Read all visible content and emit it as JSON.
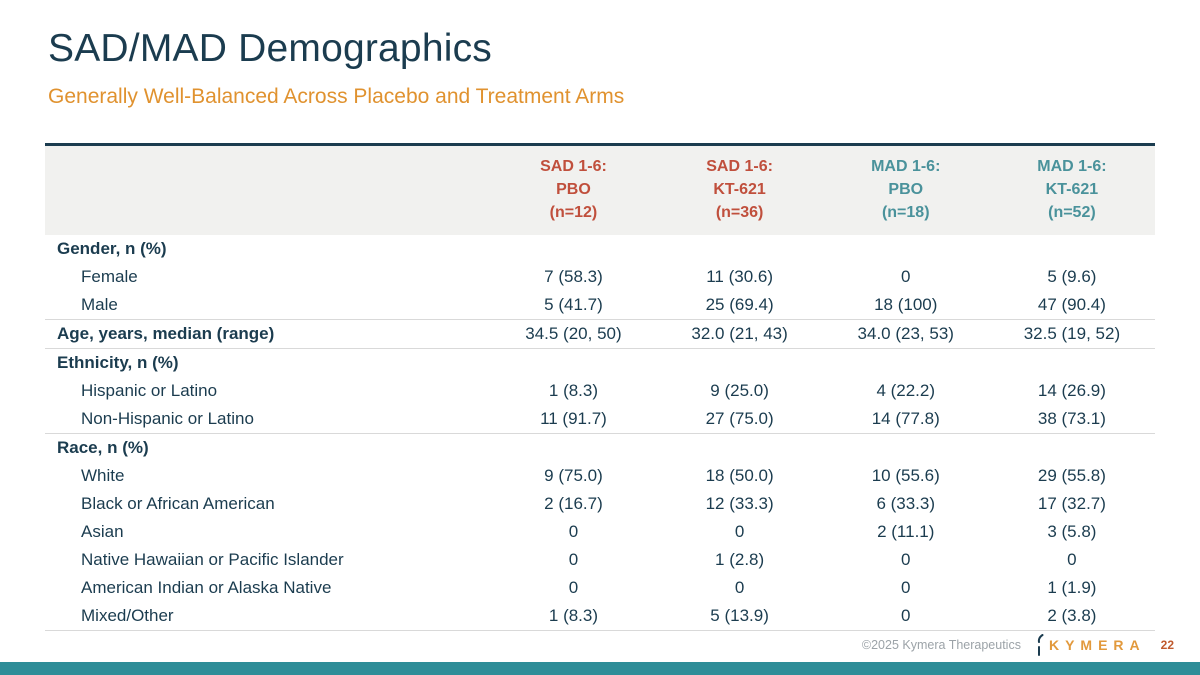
{
  "slide": {
    "title": "SAD/MAD Demographics",
    "subtitle": "Generally Well-Balanced Across Placebo and Treatment Arms"
  },
  "colors": {
    "title_navy": "#1b3c4f",
    "subtitle_orange": "#e0922f",
    "sad_red": "#c04f3c",
    "mad_teal": "#4a929b",
    "header_bg": "#f1f1ef",
    "footer_bar_teal": "#2e8d98"
  },
  "table": {
    "columns": [
      {
        "study": "SAD 1-6:",
        "arm": "PBO",
        "n": "(n=12)",
        "group": "sad"
      },
      {
        "study": "SAD 1-6:",
        "arm": "KT-621",
        "n": "(n=36)",
        "group": "sad"
      },
      {
        "study": "MAD 1-6:",
        "arm": "PBO",
        "n": "(n=18)",
        "group": "mad"
      },
      {
        "study": "MAD 1-6:",
        "arm": "KT-621",
        "n": "(n=52)",
        "group": "mad"
      }
    ],
    "rows": [
      {
        "label": "Gender, n (%)",
        "bold": true,
        "indent": false,
        "section_end": false,
        "values": [
          "",
          "",
          "",
          ""
        ]
      },
      {
        "label": "Female",
        "bold": false,
        "indent": true,
        "section_end": false,
        "values": [
          "7 (58.3)",
          "11 (30.6)",
          "0",
          "5 (9.6)"
        ]
      },
      {
        "label": "Male",
        "bold": false,
        "indent": true,
        "section_end": true,
        "values": [
          "5 (41.7)",
          "25 (69.4)",
          "18 (100)",
          "47 (90.4)"
        ]
      },
      {
        "label": "Age, years, median (range)",
        "bold": true,
        "indent": false,
        "section_end": true,
        "values": [
          "34.5 (20, 50)",
          "32.0 (21, 43)",
          "34.0 (23, 53)",
          "32.5 (19, 52)"
        ]
      },
      {
        "label": "Ethnicity, n (%)",
        "bold": true,
        "indent": false,
        "section_end": false,
        "values": [
          "",
          "",
          "",
          ""
        ]
      },
      {
        "label": "Hispanic or Latino",
        "bold": false,
        "indent": true,
        "section_end": false,
        "values": [
          "1 (8.3)",
          "9 (25.0)",
          "4 (22.2)",
          "14 (26.9)"
        ]
      },
      {
        "label": "Non-Hispanic or Latino",
        "bold": false,
        "indent": true,
        "section_end": true,
        "values": [
          "11 (91.7)",
          "27 (75.0)",
          "14 (77.8)",
          "38 (73.1)"
        ]
      },
      {
        "label": "Race, n (%)",
        "bold": true,
        "indent": false,
        "section_end": false,
        "values": [
          "",
          "",
          "",
          ""
        ]
      },
      {
        "label": "White",
        "bold": false,
        "indent": true,
        "section_end": false,
        "values": [
          "9 (75.0)",
          "18 (50.0)",
          "10 (55.6)",
          "29 (55.8)"
        ]
      },
      {
        "label": "Black or African American",
        "bold": false,
        "indent": true,
        "section_end": false,
        "values": [
          "2 (16.7)",
          "12 (33.3)",
          "6 (33.3)",
          "17 (32.7)"
        ]
      },
      {
        "label": "Asian",
        "bold": false,
        "indent": true,
        "section_end": false,
        "values": [
          "0",
          "0",
          "2 (11.1)",
          "3 (5.8)"
        ]
      },
      {
        "label": "Native Hawaiian or Pacific Islander",
        "bold": false,
        "indent": true,
        "section_end": false,
        "values": [
          "0",
          "1 (2.8)",
          "0",
          "0"
        ]
      },
      {
        "label": "American Indian or Alaska Native",
        "bold": false,
        "indent": true,
        "section_end": false,
        "values": [
          "0",
          "0",
          "0",
          "1 (1.9)"
        ]
      },
      {
        "label": "Mixed/Other",
        "bold": false,
        "indent": true,
        "section_end": true,
        "values": [
          "1 (8.3)",
          "5 (13.9)",
          "0",
          "2 (3.8)"
        ]
      }
    ]
  },
  "footer": {
    "copyright": "©2025 Kymera Therapeutics",
    "logo_text": "KYMERA",
    "page_number": "22"
  }
}
